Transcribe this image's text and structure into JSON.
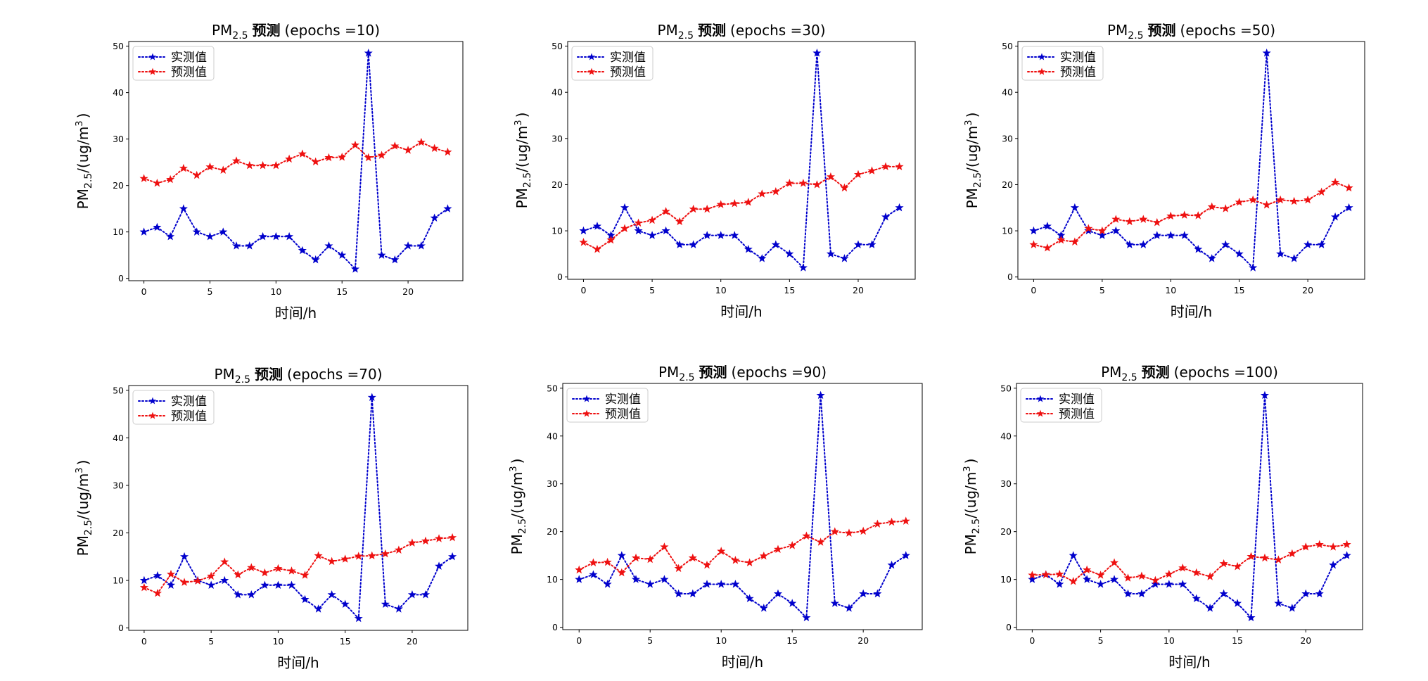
{
  "figure_title": "",
  "colors": {
    "observed": "#0000cc",
    "predicted": "#ee1111"
  },
  "chart_data": [
    {
      "type": "line",
      "title": {
        "main": "PM",
        "sub": "2.5",
        "bold": "预测",
        "tail": "(epochs =10)"
      },
      "xlabel": "时间/h",
      "ylabel": {
        "main": "PM",
        "sub": "2.5",
        "mid": "/(ug/m",
        "sup": "3",
        "end": ")"
      },
      "x": [
        0,
        1,
        2,
        3,
        4,
        5,
        6,
        7,
        8,
        9,
        10,
        11,
        12,
        13,
        14,
        15,
        16,
        17,
        18,
        19,
        20,
        21,
        22,
        23
      ],
      "xlim": [
        -1.15,
        24.15
      ],
      "ylim": [
        -0.5,
        51
      ],
      "xticks": [
        0,
        5,
        10,
        15,
        20
      ],
      "yticks": [
        0,
        10,
        20,
        30,
        40,
        50
      ],
      "legend_position": "upper-left",
      "series": [
        {
          "name": "实测值",
          "color": "#0000cc",
          "marker": "star",
          "linestyle": "dotted",
          "values": [
            10,
            11,
            9,
            15,
            10,
            9,
            10,
            7,
            7,
            9,
            9,
            9,
            6,
            4,
            7,
            5,
            2,
            48.5,
            5,
            4,
            7,
            7,
            13,
            15
          ]
        },
        {
          "name": "预测值",
          "color": "#ee1111",
          "marker": "star",
          "linestyle": "dotted",
          "values": [
            21.5,
            20.5,
            21.3,
            23.7,
            22.2,
            24,
            23.3,
            25.3,
            24.3,
            24.3,
            24.3,
            25.7,
            26.8,
            25.1,
            26,
            26.1,
            28.7,
            26,
            26.5,
            28.5,
            27.6,
            29.3,
            28,
            27.2
          ]
        }
      ]
    },
    {
      "type": "line",
      "title": {
        "main": "PM",
        "sub": "2.5",
        "bold": "预测",
        "tail": "(epochs =30)"
      },
      "xlabel": "时间/h",
      "ylabel": {
        "main": "PM",
        "sub": "2.5",
        "mid": "/(ug/m",
        "sup": "3",
        "end": ")"
      },
      "x": [
        0,
        1,
        2,
        3,
        4,
        5,
        6,
        7,
        8,
        9,
        10,
        11,
        12,
        13,
        14,
        15,
        16,
        17,
        18,
        19,
        20,
        21,
        22,
        23
      ],
      "xlim": [
        -1.15,
        24.15
      ],
      "ylim": [
        -0.5,
        51
      ],
      "xticks": [
        0,
        5,
        10,
        15,
        20
      ],
      "yticks": [
        0,
        10,
        20,
        30,
        40,
        50
      ],
      "legend_position": "upper-left",
      "series": [
        {
          "name": "实测值",
          "color": "#0000cc",
          "marker": "star",
          "linestyle": "dotted",
          "values": [
            10,
            11,
            9,
            15,
            10,
            9,
            10,
            7,
            7,
            9,
            9,
            9,
            6,
            4,
            7,
            5,
            2,
            48.5,
            5,
            4,
            7,
            7,
            13,
            15
          ]
        },
        {
          "name": "预测值",
          "color": "#ee1111",
          "marker": "star",
          "linestyle": "dotted",
          "values": [
            7.5,
            6,
            8,
            10.5,
            11.7,
            12.3,
            14.2,
            12,
            14.7,
            14.7,
            15.7,
            15.9,
            16.2,
            18,
            18.5,
            20.3,
            20.3,
            20,
            21.7,
            19.3,
            22.2,
            23,
            23.9,
            23.9
          ]
        }
      ]
    },
    {
      "type": "line",
      "title": {
        "main": "PM",
        "sub": "2.5",
        "bold": "预测",
        "tail": "(epochs =50)"
      },
      "xlabel": "时间/h",
      "ylabel": {
        "main": "PM",
        "sub": "2.5",
        "mid": "/(ug/m",
        "sup": "3",
        "end": ")"
      },
      "x": [
        0,
        1,
        2,
        3,
        4,
        5,
        6,
        7,
        8,
        9,
        10,
        11,
        12,
        13,
        14,
        15,
        16,
        17,
        18,
        19,
        20,
        21,
        22,
        23
      ],
      "xlim": [
        -1.15,
        24.15
      ],
      "ylim": [
        -0.5,
        51
      ],
      "xticks": [
        0,
        5,
        10,
        15,
        20
      ],
      "yticks": [
        0,
        10,
        20,
        30,
        40,
        50
      ],
      "legend_position": "upper-left",
      "series": [
        {
          "name": "实测值",
          "color": "#0000cc",
          "marker": "star",
          "linestyle": "dotted",
          "values": [
            10,
            11,
            9,
            15,
            10,
            9,
            10,
            7,
            7,
            9,
            9,
            9,
            6,
            4,
            7,
            5,
            2,
            48.5,
            5,
            4,
            7,
            7,
            13,
            15
          ]
        },
        {
          "name": "预测值",
          "color": "#ee1111",
          "marker": "star",
          "linestyle": "dotted",
          "values": [
            7,
            6.3,
            8,
            7.6,
            10.5,
            10,
            12.5,
            12,
            12.5,
            11.8,
            13.2,
            13.4,
            13.3,
            15.2,
            14.8,
            16.2,
            16.7,
            15.6,
            16.7,
            16.4,
            16.7,
            18.4,
            20.5,
            19.3
          ]
        }
      ]
    },
    {
      "type": "line",
      "title": {
        "main": "PM",
        "sub": "2.5",
        "bold": "预测",
        "tail": "(epochs =70)"
      },
      "xlabel": "时间/h",
      "ylabel": {
        "main": "PM",
        "sub": "2.5",
        "mid": "/(ug/m",
        "sup": "3",
        "end": ")"
      },
      "x": [
        0,
        1,
        2,
        3,
        4,
        5,
        6,
        7,
        8,
        9,
        10,
        11,
        12,
        13,
        14,
        15,
        16,
        17,
        18,
        19,
        20,
        21,
        22,
        23
      ],
      "xlim": [
        -1.15,
        24.15
      ],
      "ylim": [
        -0.5,
        51
      ],
      "xticks": [
        0,
        5,
        10,
        15,
        20
      ],
      "yticks": [
        0,
        10,
        20,
        30,
        40,
        50
      ],
      "legend_position": "upper-left",
      "series": [
        {
          "name": "实测值",
          "color": "#0000cc",
          "marker": "star",
          "linestyle": "dotted",
          "values": [
            10,
            11,
            9,
            15,
            10,
            9,
            10,
            7,
            7,
            9,
            9,
            9,
            6,
            4,
            7,
            5,
            2,
            48.5,
            5,
            4,
            7,
            7,
            13,
            15
          ]
        },
        {
          "name": "预测值",
          "color": "#ee1111",
          "marker": "star",
          "linestyle": "dotted",
          "values": [
            8.5,
            7.3,
            11.3,
            9.6,
            9.9,
            10.9,
            13.9,
            11.2,
            12.7,
            11.6,
            12.5,
            12,
            11.1,
            15.2,
            14,
            14.5,
            15.1,
            15.2,
            15.6,
            16.4,
            17.9,
            18.3,
            18.8,
            19
          ]
        }
      ]
    },
    {
      "type": "line",
      "title": {
        "main": "PM",
        "sub": "2.5",
        "bold": "预测",
        "tail": "(epochs =90)"
      },
      "xlabel": "时间/h",
      "ylabel": {
        "main": "PM",
        "sub": "2.5",
        "mid": "/(ug/m",
        "sup": "3",
        "end": ")"
      },
      "x": [
        0,
        1,
        2,
        3,
        4,
        5,
        6,
        7,
        8,
        9,
        10,
        11,
        12,
        13,
        14,
        15,
        16,
        17,
        18,
        19,
        20,
        21,
        22,
        23
      ],
      "xlim": [
        -1.15,
        24.15
      ],
      "ylim": [
        -0.5,
        51
      ],
      "xticks": [
        0,
        5,
        10,
        15,
        20
      ],
      "yticks": [
        0,
        10,
        20,
        30,
        40,
        50
      ],
      "legend_position": "upper-left",
      "series": [
        {
          "name": "实测值",
          "color": "#0000cc",
          "marker": "star",
          "linestyle": "dotted",
          "values": [
            10,
            11,
            9,
            15,
            10,
            9,
            10,
            7,
            7,
            9,
            9,
            9,
            6,
            4,
            7,
            5,
            2,
            48.5,
            5,
            4,
            7,
            7,
            13,
            15
          ]
        },
        {
          "name": "预测值",
          "color": "#ee1111",
          "marker": "star",
          "linestyle": "dotted",
          "values": [
            12,
            13.5,
            13.6,
            11.4,
            14.5,
            14.2,
            16.8,
            12.3,
            14.5,
            13,
            15.9,
            14,
            13.5,
            14.9,
            16.3,
            17.1,
            19.1,
            17.8,
            20,
            19.7,
            20.1,
            21.6,
            22,
            22.2
          ]
        }
      ]
    },
    {
      "type": "line",
      "title": {
        "main": "PM",
        "sub": "2.5",
        "bold": "预测",
        "tail": "(epochs =100)"
      },
      "xlabel": "时间/h",
      "ylabel": {
        "main": "PM",
        "sub": "2.5",
        "mid": "/(ug/m",
        "sup": "3",
        "end": ")"
      },
      "x": [
        0,
        1,
        2,
        3,
        4,
        5,
        6,
        7,
        8,
        9,
        10,
        11,
        12,
        13,
        14,
        15,
        16,
        17,
        18,
        19,
        20,
        21,
        22,
        23
      ],
      "xlim": [
        -1.15,
        24.15
      ],
      "ylim": [
        -0.5,
        51
      ],
      "xticks": [
        0,
        5,
        10,
        15,
        20
      ],
      "yticks": [
        0,
        10,
        20,
        30,
        40,
        50
      ],
      "legend_position": "upper-left",
      "series": [
        {
          "name": "实测值",
          "color": "#0000cc",
          "marker": "star",
          "linestyle": "dotted",
          "values": [
            10,
            11,
            9,
            15,
            10,
            9,
            10,
            7,
            7,
            9,
            9,
            9,
            6,
            4,
            7,
            5,
            2,
            48.5,
            5,
            4,
            7,
            7,
            13,
            15
          ]
        },
        {
          "name": "预测值",
          "color": "#ee1111",
          "marker": "star",
          "linestyle": "dotted",
          "values": [
            10.9,
            11,
            11.1,
            9.6,
            12,
            10.9,
            13.5,
            10.3,
            10.7,
            9.8,
            11.1,
            12.4,
            11.4,
            10.6,
            13.3,
            12.7,
            14.8,
            14.5,
            14.1,
            15.4,
            16.8,
            17.3,
            16.8,
            17.3
          ]
        }
      ]
    }
  ]
}
